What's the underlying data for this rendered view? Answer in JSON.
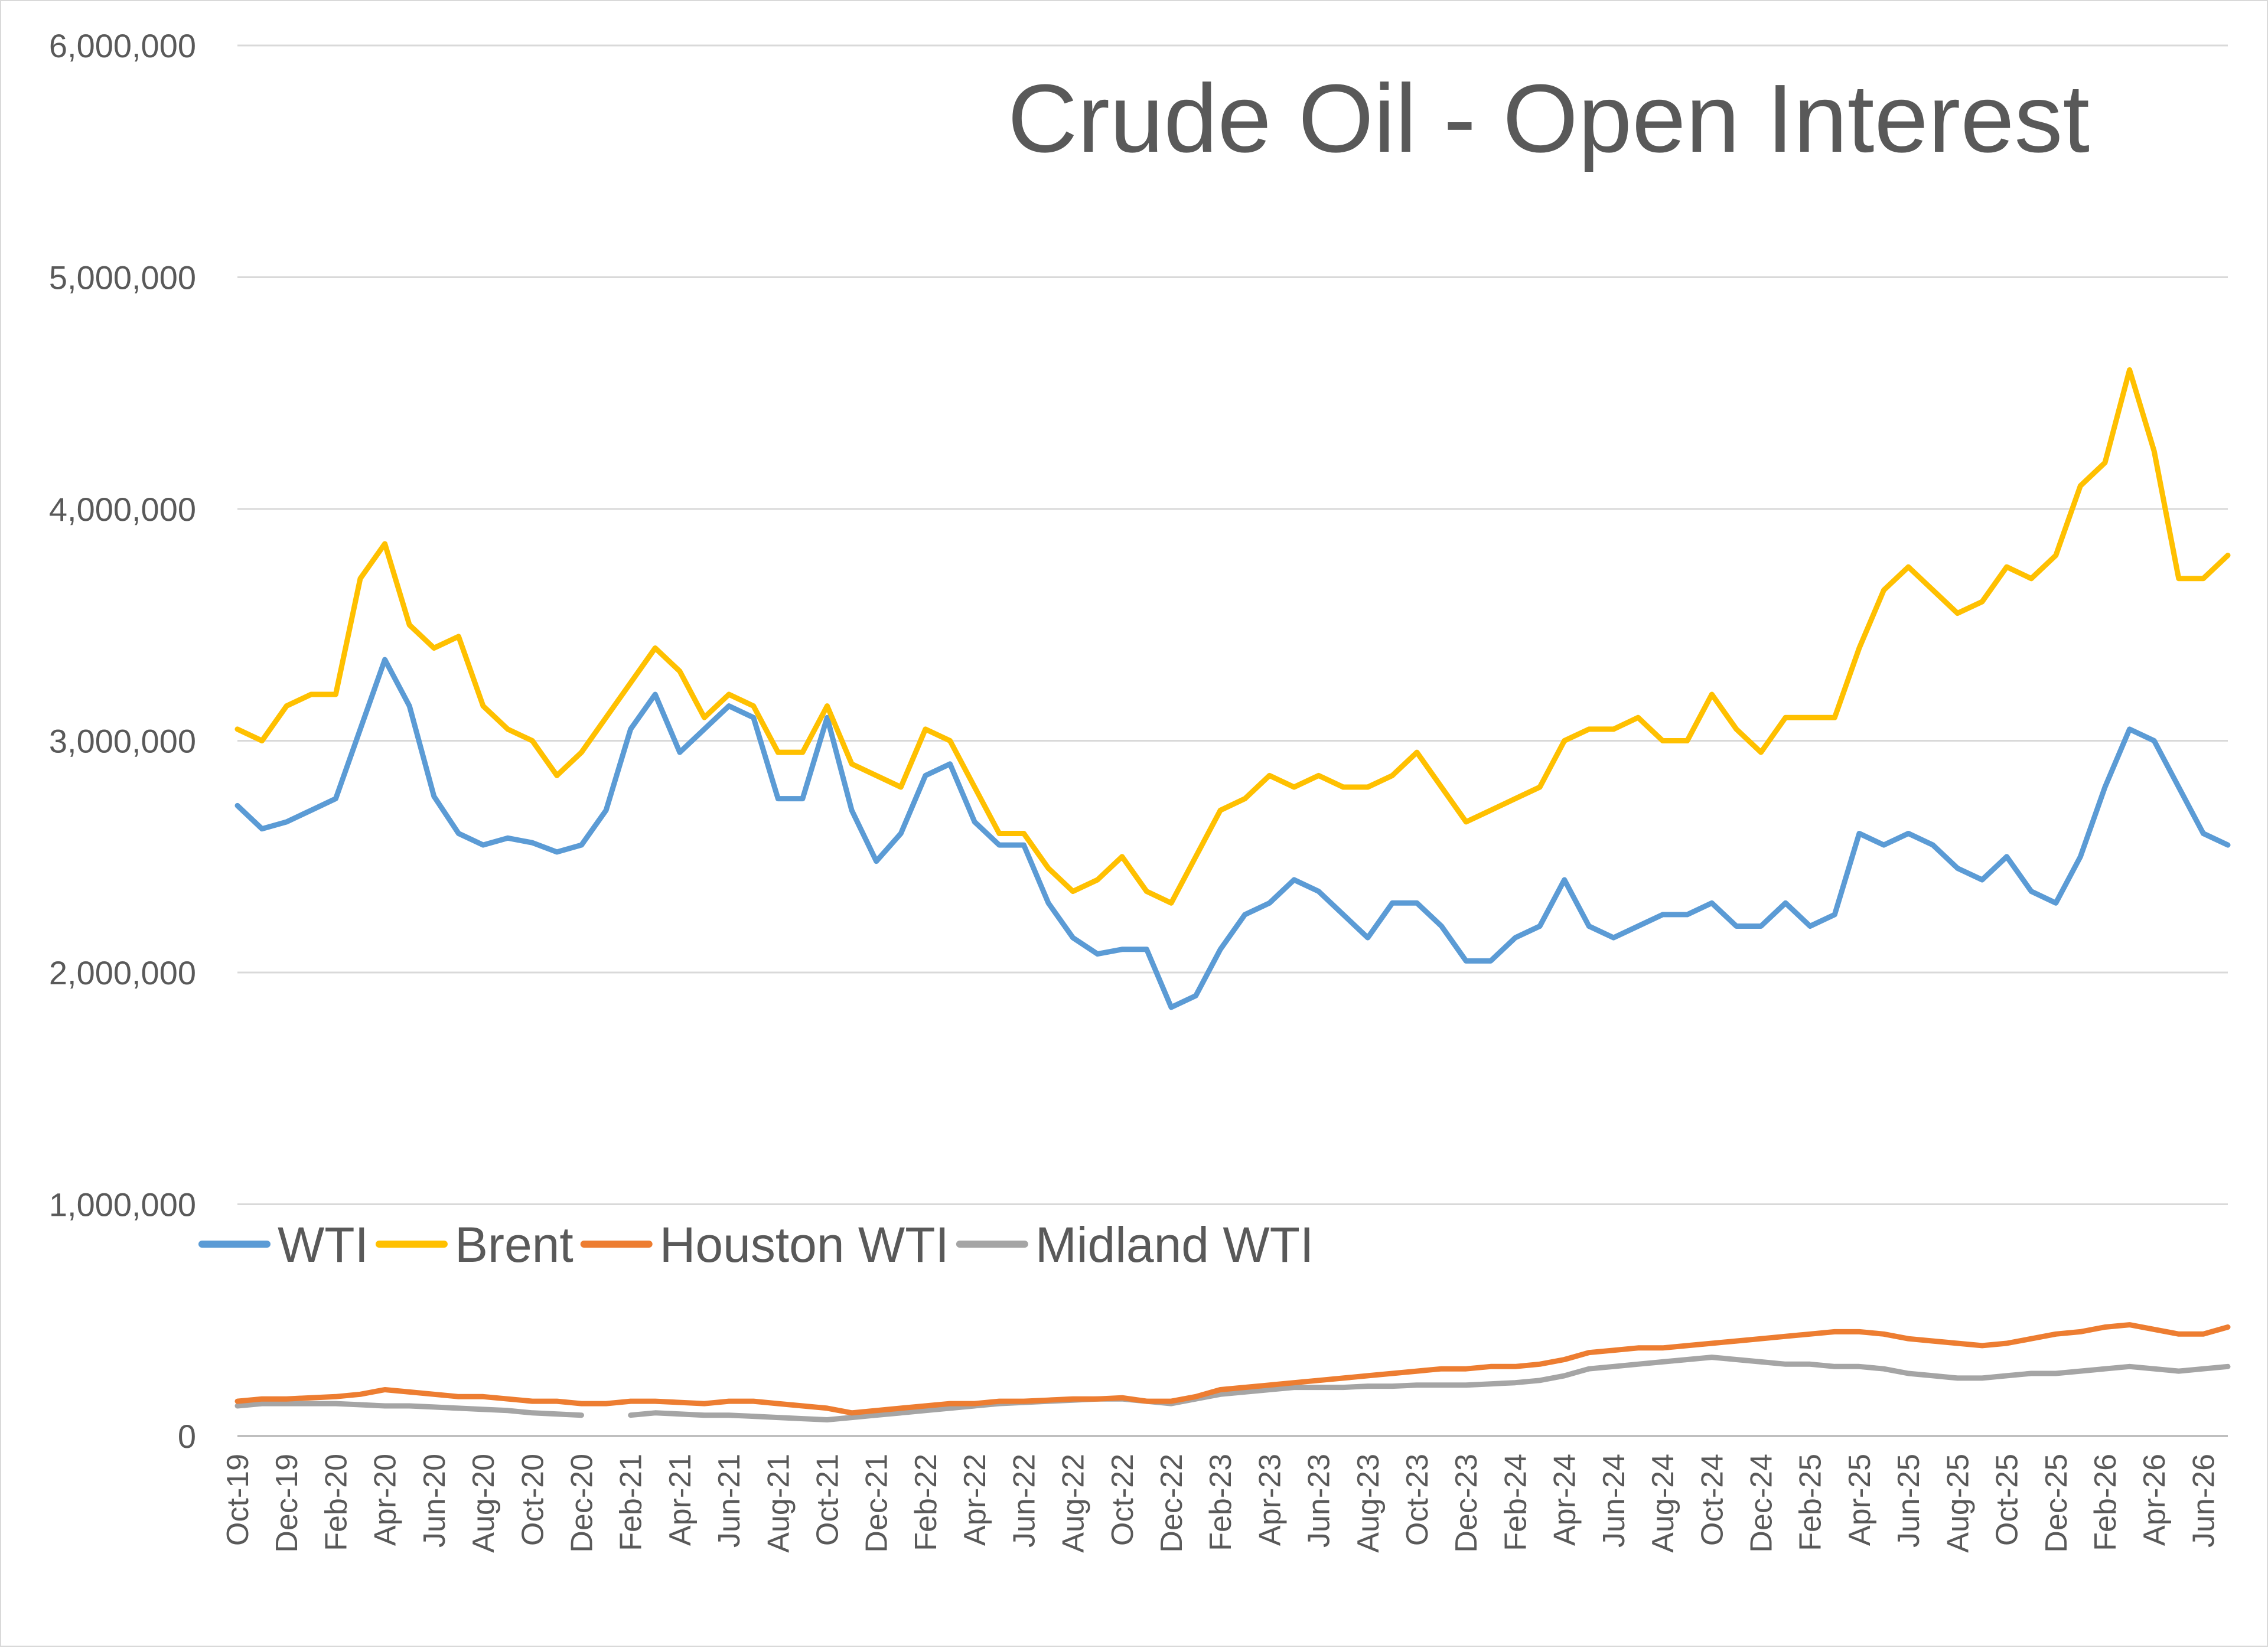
{
  "chart_data": {
    "type": "line",
    "title": "Crude Oil - Open Interest",
    "xlabel": "",
    "ylabel": "",
    "ylim": [
      0,
      6000000
    ],
    "yticks": [
      0,
      1000000,
      2000000,
      3000000,
      4000000,
      5000000,
      6000000
    ],
    "ytick_labels": [
      "0",
      "1,000,000",
      "2,000,000",
      "3,000,000",
      "4,000,000",
      "5,000,000",
      "6,000,000"
    ],
    "x_start": "2019-10",
    "x_end": "2026-07",
    "xtick_labels": [
      "Oct-19",
      "Dec-19",
      "Feb-20",
      "Apr-20",
      "Jun-20",
      "Aug-20",
      "Oct-20",
      "Dec-20",
      "Feb-21",
      "Apr-21",
      "Jun-21",
      "Aug-21",
      "Oct-21",
      "Dec-21",
      "Feb-22",
      "Apr-22",
      "Jun-22",
      "Aug-22",
      "Oct-22",
      "Dec-22",
      "Feb-23",
      "Apr-23",
      "Jun-23",
      "Aug-23",
      "Oct-23",
      "Dec-23",
      "Feb-24",
      "Apr-24",
      "Jun-24",
      "Aug-24",
      "Oct-24",
      "Dec-24",
      "Feb-25",
      "Apr-25",
      "Jun-25",
      "Aug-25",
      "Oct-25",
      "Dec-25",
      "Feb-26",
      "Apr-26",
      "Jun-26"
    ],
    "grid": true,
    "legend_position": "middle-left",
    "series": [
      {
        "name": "WTI",
        "color": "#5b9bd5",
        "x": [
          "Oct-19",
          "Nov-19",
          "Dec-19",
          "Jan-20",
          "Feb-20",
          "Mar-20",
          "Apr-20",
          "May-20",
          "Jun-20",
          "Jul-20",
          "Aug-20",
          "Sep-20",
          "Oct-20",
          "Nov-20",
          "Dec-20",
          "Jan-21",
          "Feb-21",
          "Mar-21",
          "Apr-21",
          "May-21",
          "Jun-21",
          "Jul-21",
          "Aug-21",
          "Sep-21",
          "Oct-21",
          "Nov-21",
          "Dec-21",
          "Jan-22",
          "Feb-22",
          "Mar-22",
          "Apr-22",
          "May-22",
          "Jun-22",
          "Jul-22",
          "Aug-22",
          "Sep-22",
          "Oct-22",
          "Nov-22",
          "Dec-22",
          "Jan-23",
          "Feb-23",
          "Mar-23",
          "Apr-23",
          "May-23",
          "Jun-23",
          "Jul-23",
          "Aug-23",
          "Sep-23",
          "Oct-23",
          "Nov-23",
          "Dec-23",
          "Jan-24",
          "Feb-24",
          "Mar-24",
          "Apr-24",
          "May-24",
          "Jun-24",
          "Jul-24",
          "Aug-24",
          "Sep-24",
          "Oct-24",
          "Nov-24",
          "Dec-24",
          "Jan-25",
          "Feb-25",
          "Mar-25",
          "Apr-25",
          "May-25",
          "Jun-25",
          "Jul-25",
          "Aug-25",
          "Sep-25",
          "Oct-25",
          "Nov-25",
          "Dec-25",
          "Jan-26",
          "Feb-26",
          "Mar-26",
          "Apr-26",
          "May-26",
          "Jun-26",
          "Jul-26"
        ],
        "values": [
          2720000,
          2620000,
          2650000,
          2700000,
          2750000,
          3050000,
          3350000,
          3150000,
          2760000,
          2600000,
          2550000,
          2580000,
          2560000,
          2520000,
          2550000,
          2700000,
          3050000,
          3200000,
          2950000,
          3050000,
          3150000,
          3100000,
          2750000,
          2750000,
          3100000,
          2700000,
          2480000,
          2600000,
          2850000,
          2900000,
          2650000,
          2550000,
          2550000,
          2300000,
          2150000,
          2080000,
          2100000,
          2100000,
          1850000,
          1900000,
          2100000,
          2250000,
          2300000,
          2400000,
          2350000,
          2250000,
          2150000,
          2300000,
          2300000,
          2200000,
          2050000,
          2050000,
          2150000,
          2200000,
          2400000,
          2200000,
          2150000,
          2200000,
          2250000,
          2250000,
          2300000,
          2200000,
          2200000,
          2300000,
          2200000,
          2250000,
          2600000,
          2550000,
          2600000,
          2550000,
          2450000,
          2400000,
          2500000,
          2350000,
          2300000,
          2500000,
          2800000,
          3050000,
          3000000,
          2800000,
          2600000,
          2550000
        ]
      },
      {
        "name": "Brent",
        "color": "#ffc000",
        "x": [
          "Oct-19",
          "Nov-19",
          "Dec-19",
          "Jan-20",
          "Feb-20",
          "Mar-20",
          "Apr-20",
          "May-20",
          "Jun-20",
          "Jul-20",
          "Aug-20",
          "Sep-20",
          "Oct-20",
          "Nov-20",
          "Dec-20",
          "Jan-21",
          "Feb-21",
          "Mar-21",
          "Apr-21",
          "May-21",
          "Jun-21",
          "Jul-21",
          "Aug-21",
          "Sep-21",
          "Oct-21",
          "Nov-21",
          "Dec-21",
          "Jan-22",
          "Feb-22",
          "Mar-22",
          "Apr-22",
          "May-22",
          "Jun-22",
          "Jul-22",
          "Aug-22",
          "Sep-22",
          "Oct-22",
          "Nov-22",
          "Dec-22",
          "Jan-23",
          "Feb-23",
          "Mar-23",
          "Apr-23",
          "May-23",
          "Jun-23",
          "Jul-23",
          "Aug-23",
          "Sep-23",
          "Oct-23",
          "Nov-23",
          "Dec-23",
          "Jan-24",
          "Feb-24",
          "Mar-24",
          "Apr-24",
          "May-24",
          "Jun-24",
          "Jul-24",
          "Aug-24",
          "Sep-24",
          "Oct-24",
          "Nov-24",
          "Dec-24",
          "Jan-25",
          "Feb-25",
          "Mar-25",
          "Apr-25",
          "May-25",
          "Jun-25",
          "Jul-25",
          "Aug-25",
          "Sep-25",
          "Oct-25",
          "Nov-25",
          "Dec-25",
          "Jan-26",
          "Feb-26",
          "Mar-26",
          "Apr-26",
          "May-26",
          "Jun-26",
          "Jul-26"
        ],
        "values": [
          3050000,
          3000000,
          3150000,
          3200000,
          3200000,
          3700000,
          3850000,
          3500000,
          3400000,
          3450000,
          3150000,
          3050000,
          3000000,
          2850000,
          2950000,
          3100000,
          3250000,
          3400000,
          3300000,
          3100000,
          3200000,
          3150000,
          2950000,
          2950000,
          3150000,
          2900000,
          2850000,
          2800000,
          3050000,
          3000000,
          2800000,
          2600000,
          2600000,
          2450000,
          2350000,
          2400000,
          2500000,
          2350000,
          2300000,
          2500000,
          2700000,
          2750000,
          2850000,
          2800000,
          2850000,
          2800000,
          2800000,
          2850000,
          2950000,
          2800000,
          2650000,
          2700000,
          2750000,
          2800000,
          3000000,
          3050000,
          3050000,
          3100000,
          3000000,
          3000000,
          3200000,
          3050000,
          2950000,
          3100000,
          3100000,
          3100000,
          3400000,
          3650000,
          3750000,
          3650000,
          3550000,
          3600000,
          3750000,
          3700000,
          3800000,
          4100000,
          4200000,
          4600000,
          4250000,
          3700000,
          3700000,
          3800000
        ]
      },
      {
        "name": "Houston WTI",
        "color": "#ed7d31",
        "x": [
          "Oct-19",
          "Nov-19",
          "Dec-19",
          "Jan-20",
          "Feb-20",
          "Mar-20",
          "Apr-20",
          "May-20",
          "Jun-20",
          "Jul-20",
          "Aug-20",
          "Sep-20",
          "Oct-20",
          "Nov-20",
          "Dec-20",
          "Jan-21",
          "Feb-21",
          "Mar-21",
          "Apr-21",
          "May-21",
          "Jun-21",
          "Jul-21",
          "Aug-21",
          "Sep-21",
          "Oct-21",
          "Nov-21",
          "Dec-21",
          "Jan-22",
          "Feb-22",
          "Mar-22",
          "Apr-22",
          "May-22",
          "Jun-22",
          "Jul-22",
          "Aug-22",
          "Sep-22",
          "Oct-22",
          "Nov-22",
          "Dec-22",
          "Jan-23",
          "Feb-23",
          "Mar-23",
          "Apr-23",
          "May-23",
          "Jun-23",
          "Jul-23",
          "Aug-23",
          "Sep-23",
          "Oct-23",
          "Nov-23",
          "Dec-23",
          "Jan-24",
          "Feb-24",
          "Mar-24",
          "Apr-24",
          "May-24",
          "Jun-24",
          "Jul-24",
          "Aug-24",
          "Sep-24",
          "Oct-24",
          "Nov-24",
          "Dec-24",
          "Jan-25",
          "Feb-25",
          "Mar-25",
          "Apr-25",
          "May-25",
          "Jun-25",
          "Jul-25",
          "Aug-25",
          "Sep-25",
          "Oct-25",
          "Nov-25",
          "Dec-25",
          "Jan-26",
          "Feb-26",
          "Mar-26",
          "Apr-26",
          "May-26",
          "Jun-26",
          "Jul-26"
        ],
        "values": [
          150000,
          160000,
          160000,
          165000,
          170000,
          180000,
          200000,
          190000,
          180000,
          170000,
          170000,
          160000,
          150000,
          150000,
          140000,
          140000,
          150000,
          150000,
          145000,
          140000,
          150000,
          150000,
          140000,
          130000,
          120000,
          100000,
          110000,
          120000,
          130000,
          140000,
          140000,
          150000,
          150000,
          155000,
          160000,
          160000,
          165000,
          150000,
          150000,
          170000,
          200000,
          210000,
          220000,
          230000,
          240000,
          250000,
          260000,
          270000,
          280000,
          290000,
          290000,
          300000,
          300000,
          310000,
          330000,
          360000,
          370000,
          380000,
          380000,
          390000,
          400000,
          410000,
          420000,
          430000,
          440000,
          450000,
          450000,
          440000,
          420000,
          410000,
          400000,
          390000,
          400000,
          420000,
          440000,
          450000,
          470000,
          480000,
          460000,
          440000,
          440000,
          470000
        ]
      },
      {
        "name": "Midland WTI",
        "color": "#a5a5a5",
        "x": [
          "Oct-19",
          "Nov-19",
          "Dec-19",
          "Jan-20",
          "Feb-20",
          "Mar-20",
          "Apr-20",
          "May-20",
          "Jun-20",
          "Jul-20",
          "Aug-20",
          "Sep-20",
          "Oct-20",
          "Nov-20",
          "Dec-20",
          "Jan-21",
          "Feb-21",
          "Mar-21",
          "Apr-21",
          "May-21",
          "Jun-21",
          "Jul-21",
          "Aug-21",
          "Sep-21",
          "Oct-21",
          "Nov-21",
          "Dec-21",
          "Jan-22",
          "Feb-22",
          "Mar-22",
          "Apr-22",
          "May-22",
          "Jun-22",
          "Jul-22",
          "Aug-22",
          "Sep-22",
          "Oct-22",
          "Nov-22",
          "Dec-22",
          "Jan-23",
          "Feb-23",
          "Mar-23",
          "Apr-23",
          "May-23",
          "Jun-23",
          "Jul-23",
          "Aug-23",
          "Sep-23",
          "Oct-23",
          "Nov-23",
          "Dec-23",
          "Jan-24",
          "Feb-24",
          "Mar-24",
          "Apr-24",
          "May-24",
          "Jun-24",
          "Jul-24",
          "Aug-24",
          "Sep-24",
          "Oct-24",
          "Nov-24",
          "Dec-24",
          "Jan-25",
          "Feb-25",
          "Mar-25",
          "Apr-25",
          "May-25",
          "Jun-25",
          "Jul-25",
          "Aug-25",
          "Sep-25",
          "Oct-25",
          "Nov-25",
          "Dec-25",
          "Jan-26",
          "Feb-26",
          "Mar-26",
          "Apr-26",
          "May-26",
          "Jun-26",
          "Jul-26"
        ],
        "values": [
          130000,
          140000,
          140000,
          140000,
          140000,
          135000,
          130000,
          130000,
          125000,
          120000,
          115000,
          110000,
          100000,
          95000,
          90000,
          null,
          90000,
          100000,
          95000,
          90000,
          90000,
          85000,
          80000,
          75000,
          70000,
          80000,
          90000,
          100000,
          110000,
          120000,
          130000,
          140000,
          145000,
          150000,
          155000,
          160000,
          160000,
          150000,
          140000,
          160000,
          180000,
          190000,
          200000,
          210000,
          210000,
          210000,
          215000,
          215000,
          220000,
          220000,
          220000,
          225000,
          230000,
          240000,
          260000,
          290000,
          300000,
          310000,
          320000,
          330000,
          340000,
          330000,
          320000,
          310000,
          310000,
          300000,
          300000,
          290000,
          270000,
          260000,
          250000,
          250000,
          260000,
          270000,
          270000,
          280000,
          290000,
          300000,
          290000,
          280000,
          290000,
          300000
        ]
      }
    ]
  }
}
